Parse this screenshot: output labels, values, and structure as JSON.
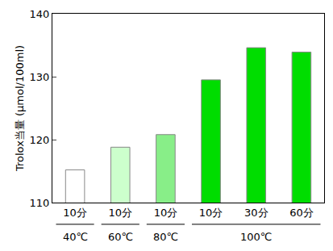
{
  "chart_data": {
    "type": "bar",
    "y_label": "Trolox当量 (μmol/100ml)",
    "categories": [
      "10分",
      "10分",
      "10分",
      "10分",
      "30分",
      "60分"
    ],
    "groups": [
      "40℃",
      "60℃",
      "80℃",
      "100℃",
      "100℃",
      "100℃"
    ],
    "values": [
      115.2,
      118.8,
      120.8,
      129.5,
      134.6,
      133.9
    ],
    "colors": [
      "#ffffff",
      "#ccffcc",
      "#88ee88",
      "#00dd00",
      "#00dd00",
      "#00dd00"
    ],
    "ylim": [
      110,
      140
    ],
    "yticks": [
      110,
      120,
      130,
      140
    ],
    "grid": false
  }
}
